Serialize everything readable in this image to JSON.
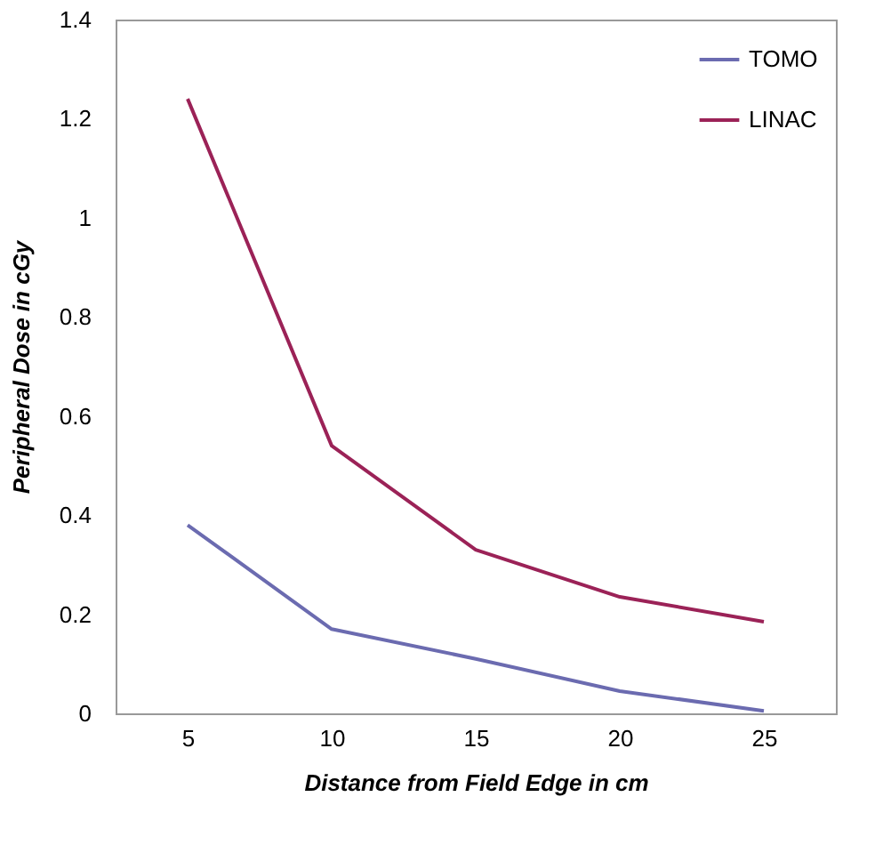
{
  "chart_data": {
    "type": "line",
    "xlabel": "Distance from Field Edge in cm",
    "ylabel": "Peripheral Dose in cGy",
    "categories": [
      "5",
      "10",
      "15",
      "20",
      "25"
    ],
    "series": [
      {
        "name": "TOMO",
        "color": "#6b6bb0",
        "values": [
          0.38,
          0.17,
          0.11,
          0.045,
          0.005
        ]
      },
      {
        "name": "LINAC",
        "color": "#9b2257",
        "values": [
          1.24,
          0.54,
          0.33,
          0.235,
          0.185
        ]
      }
    ],
    "ylim": [
      0,
      1.4
    ],
    "yticks": [
      0,
      0.2,
      0.4,
      0.6,
      0.8,
      1,
      1.2,
      1.4
    ],
    "grid": false,
    "legend": "top right",
    "marker": "none",
    "line_style": "solid"
  }
}
